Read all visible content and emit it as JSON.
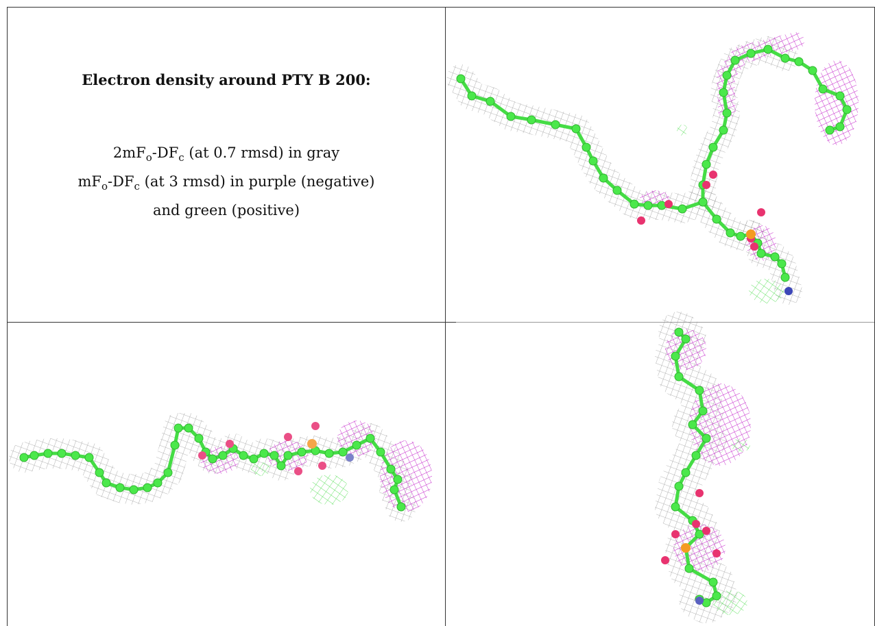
{
  "caption": {
    "title": "Electron density around PTY B 200:",
    "line1": [
      "2mF",
      "o",
      "-DF",
      "c",
      " (at 0.7 rmsd) in gray"
    ],
    "line2": [
      "mF",
      "o",
      "-DF",
      "c",
      " (at 3 rmsd) in purple (negative)"
    ],
    "line3": "and green (positive)"
  }
}
